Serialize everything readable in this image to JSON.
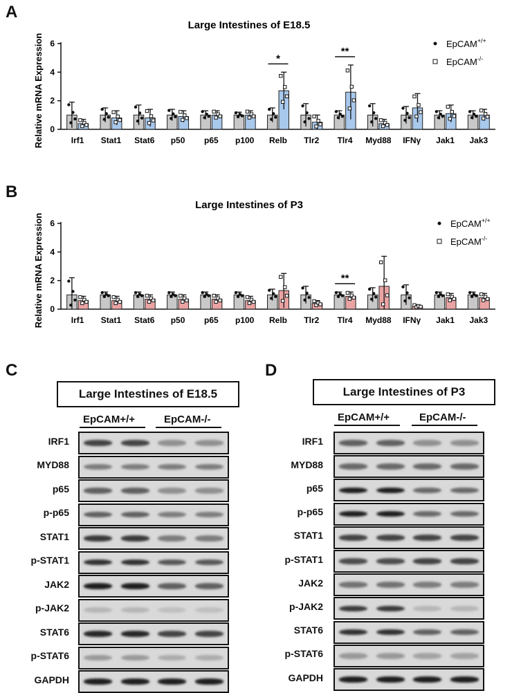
{
  "figure": {
    "panels": {
      "a": {
        "letter": "A",
        "title": "Large Intestines of E18.5"
      },
      "b": {
        "letter": "B",
        "title": "Large Intestines of P3"
      },
      "c": {
        "letter": "C",
        "title": "Large Intestines of E18.5"
      },
      "d": {
        "letter": "D",
        "title": "Large Intestines of P3"
      }
    },
    "legend": {
      "wt_base": "EpCAM",
      "wt_sup": "+/+",
      "ko_base": "EpCAM",
      "ko_sup": "-/-"
    },
    "blot_groups": {
      "wt": "EpCAM+/+",
      "ko": "EpCAM-/-"
    },
    "colors": {
      "wt_bar": "#c8c8c8",
      "ko_bar_a": "#a8c8ec",
      "ko_bar_b": "#eaa3a3"
    }
  },
  "chart_data": [
    {
      "type": "bar",
      "title": "Large Intestines of E18.5",
      "ylabel": "Relative mRNA Expression",
      "xlabel": "",
      "ylim": [
        0,
        6
      ],
      "yticks": [
        0,
        2,
        4,
        6
      ],
      "categories": [
        "Irf1",
        "Stat1",
        "Stat6",
        "p50",
        "p65",
        "p100",
        "Relb",
        "Tlr2",
        "Tlr4",
        "Myd88",
        "IFNγ",
        "Jak1",
        "Jak3"
      ],
      "series": [
        {
          "name": "EpCAM+/+",
          "values": [
            1,
            1,
            1,
            1,
            1,
            1,
            1,
            1,
            1,
            1,
            1,
            1,
            1
          ],
          "err": [
            0.9,
            0.5,
            0.7,
            0.4,
            0.3,
            0.2,
            0.5,
            0.8,
            0.3,
            0.8,
            0.6,
            0.3,
            0.3
          ]
        },
        {
          "name": "EpCAM-/-",
          "values": [
            0.4,
            0.8,
            0.8,
            0.9,
            1.0,
            1.0,
            2.7,
            0.5,
            2.6,
            0.4,
            1.5,
            1.1,
            1.0
          ],
          "err": [
            0.3,
            0.5,
            0.6,
            0.4,
            0.3,
            0.3,
            1.3,
            0.5,
            1.9,
            0.3,
            1.0,
            0.6,
            0.4
          ]
        }
      ],
      "significance": [
        {
          "category": "Relb",
          "label": "*"
        },
        {
          "category": "Tlr4",
          "label": "**"
        }
      ],
      "legend": "top-right"
    },
    {
      "type": "bar",
      "title": "Large Intestines of P3",
      "ylabel": "Relative mRNA Expression",
      "xlabel": "",
      "ylim": [
        0,
        6
      ],
      "yticks": [
        0,
        2,
        4,
        6
      ],
      "categories": [
        "Irf1",
        "Stat1",
        "Stat6",
        "p50",
        "p65",
        "p100",
        "Relb",
        "Tlr2",
        "Tlr4",
        "Myd88",
        "IFNγ",
        "Jak1",
        "Jak3"
      ],
      "series": [
        {
          "name": "EpCAM+/+",
          "values": [
            1,
            1,
            1,
            1,
            1,
            1,
            1,
            1,
            1,
            1,
            1,
            1,
            1
          ],
          "err": [
            1.2,
            0.2,
            0.2,
            0.2,
            0.2,
            0.2,
            0.4,
            0.6,
            0.2,
            0.5,
            0.7,
            0.2,
            0.2
          ]
        },
        {
          "name": "EpCAM-/-",
          "values": [
            0.6,
            0.6,
            0.7,
            0.7,
            0.7,
            0.6,
            1.3,
            0.4,
            0.9,
            1.6,
            0.2,
            0.8,
            0.8
          ],
          "err": [
            0.3,
            0.3,
            0.3,
            0.3,
            0.3,
            0.3,
            1.2,
            0.2,
            0.3,
            2.1,
            0.1,
            0.3,
            0.3
          ]
        }
      ],
      "significance": [
        {
          "category": "Tlr4",
          "label": "**"
        }
      ],
      "legend": "top-right"
    }
  ],
  "blots": {
    "c": {
      "rows": [
        {
          "label": "IRF1",
          "wt": 0.75,
          "ko": 0.35
        },
        {
          "label": "MYD88",
          "wt": 0.45,
          "ko": 0.45
        },
        {
          "label": "p65",
          "wt": 0.6,
          "ko": 0.35
        },
        {
          "label": "p-p65",
          "wt": 0.6,
          "ko": 0.45
        },
        {
          "label": "STAT1",
          "wt": 0.8,
          "ko": 0.45
        },
        {
          "label": "p-STAT1",
          "wt": 0.85,
          "ko": 0.65
        },
        {
          "label": "JAK2",
          "wt": 0.95,
          "ko": 0.6
        },
        {
          "label": "p-JAK2",
          "wt": 0.15,
          "ko": 0.1
        },
        {
          "label": "STAT6",
          "wt": 0.9,
          "ko": 0.75
        },
        {
          "label": "p-STAT6",
          "wt": 0.3,
          "ko": 0.2
        },
        {
          "label": "GAPDH",
          "wt": 0.95,
          "ko": 0.95
        }
      ]
    },
    "d": {
      "rows": [
        {
          "label": "IRF1",
          "wt": 0.6,
          "ko": 0.35
        },
        {
          "label": "MYD88",
          "wt": 0.55,
          "ko": 0.55
        },
        {
          "label": "p65",
          "wt": 0.95,
          "ko": 0.55
        },
        {
          "label": "p-p65",
          "wt": 0.95,
          "ko": 0.55
        },
        {
          "label": "STAT1",
          "wt": 0.75,
          "ko": 0.75
        },
        {
          "label": "p-STAT1",
          "wt": 0.7,
          "ko": 0.75
        },
        {
          "label": "JAK2",
          "wt": 0.5,
          "ko": 0.45
        },
        {
          "label": "p-JAK2",
          "wt": 0.8,
          "ko": 0.15
        },
        {
          "label": "STAT6",
          "wt": 0.85,
          "ko": 0.6
        },
        {
          "label": "p-STAT6",
          "wt": 0.3,
          "ko": 0.25
        },
        {
          "label": "GAPDH",
          "wt": 0.95,
          "ko": 0.95
        }
      ]
    }
  }
}
